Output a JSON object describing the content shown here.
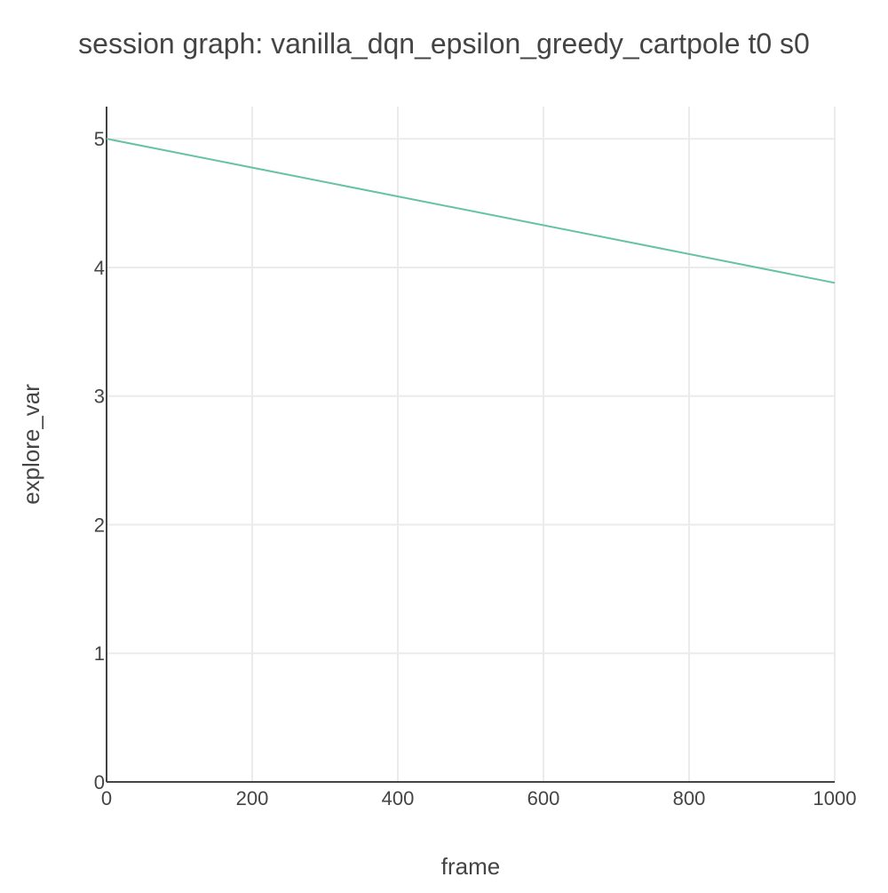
{
  "chart_data": {
    "type": "line",
    "title": "session graph: vanilla_dqn_epsilon_greedy_cartpole t0 s0",
    "xlabel": "frame",
    "ylabel": "explore_var",
    "xlim": [
      0,
      1000
    ],
    "ylim": [
      0,
      5.25
    ],
    "xticks": [
      0,
      200,
      400,
      600,
      800,
      1000
    ],
    "yticks": [
      0,
      1,
      2,
      3,
      4,
      5
    ],
    "grid": true,
    "legend": "none",
    "series": [
      {
        "color": "#66c2a5",
        "x": [
          0,
          1000
        ],
        "y": [
          5.0,
          3.88
        ]
      }
    ]
  }
}
